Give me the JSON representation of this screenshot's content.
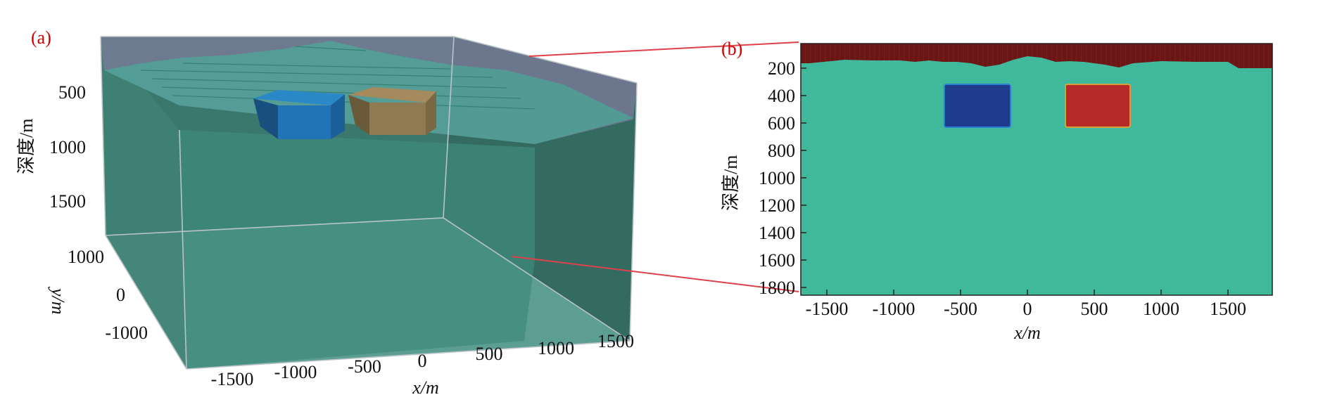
{
  "panel_a": {
    "label": "(a)",
    "depth_label": "深度/m",
    "depth_ticks": [
      "500",
      "1000",
      "1500"
    ],
    "y_label": "y/m",
    "y_ticks": [
      "1000",
      "0",
      "-1000"
    ],
    "x_label": "x/m",
    "x_ticks": [
      "-1500",
      "-1000",
      "-500",
      "0",
      "500",
      "1000",
      "1500"
    ],
    "colors": {
      "volume": "#3d7d72",
      "volume_light": "#4a9586",
      "air": "#6b6b88",
      "terrain": "#3fb89b",
      "block_blue": "#1f73b6",
      "block_brown": "#8f7a52"
    }
  },
  "panel_b": {
    "label": "(b)",
    "y_label": "深度/m",
    "x_label": "x/m",
    "x_ticks": [
      "-1500",
      "-1000",
      "-500",
      "0",
      "500",
      "1000",
      "1500"
    ],
    "y_ticks": [
      "200",
      "400",
      "600",
      "800",
      "1000",
      "1200",
      "1400",
      "1600",
      "1800"
    ],
    "colors": {
      "background": "#3fb89b",
      "air": "#6b1515",
      "block_blue": "#1e3a8a",
      "block_red": "#b72a2a"
    }
  },
  "connector_color": "#e0404a"
}
